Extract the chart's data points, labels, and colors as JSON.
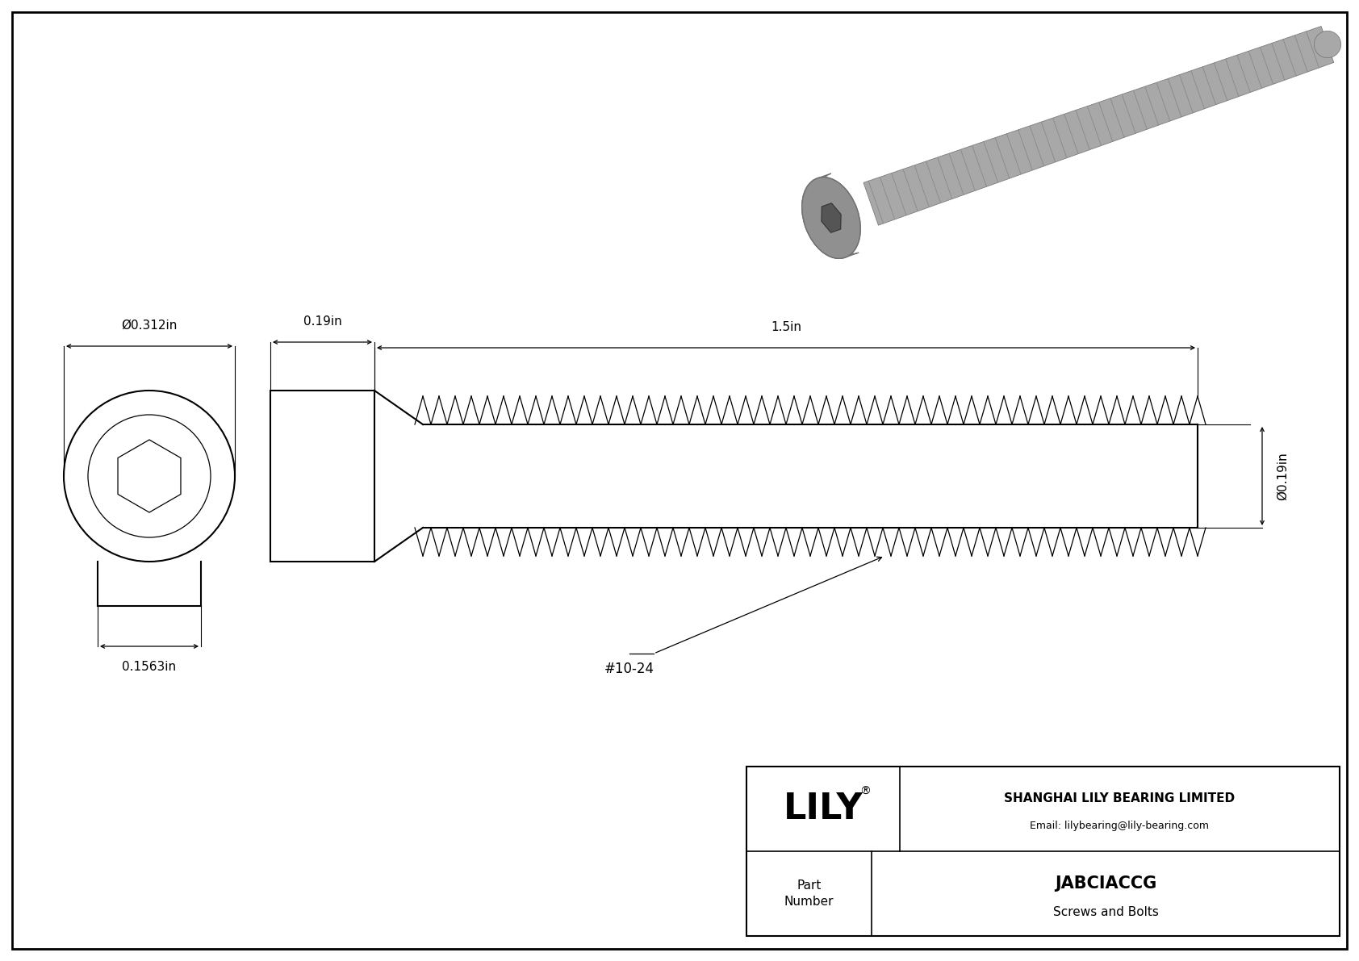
{
  "bg_color": "#ffffff",
  "border_color": "#000000",
  "line_color": "#000000",
  "title": "JABCIACCG",
  "subtitle": "Screws and Bolts",
  "company": "SHANGHAI LILY BEARING LIMITED",
  "email": "Email: lilybearing@lily-bearing.com",
  "part_label": "Part\nNumber",
  "dim_head_width": "0.312in",
  "dim_head_length": "0.19in",
  "dim_shaft_length": "1.5in",
  "dim_shaft_dia": "0.19in",
  "dim_hex_width": "0.1563in",
  "thread_label": "#10-24",
  "font_size_dim": 11,
  "font_size_label": 10,
  "font_size_title": 15,
  "font_size_company": 11,
  "font_size_lily": 32,
  "screw_gray": "#a8a8a8",
  "screw_dark": "#707070",
  "screw_light": "#c8c8c8"
}
